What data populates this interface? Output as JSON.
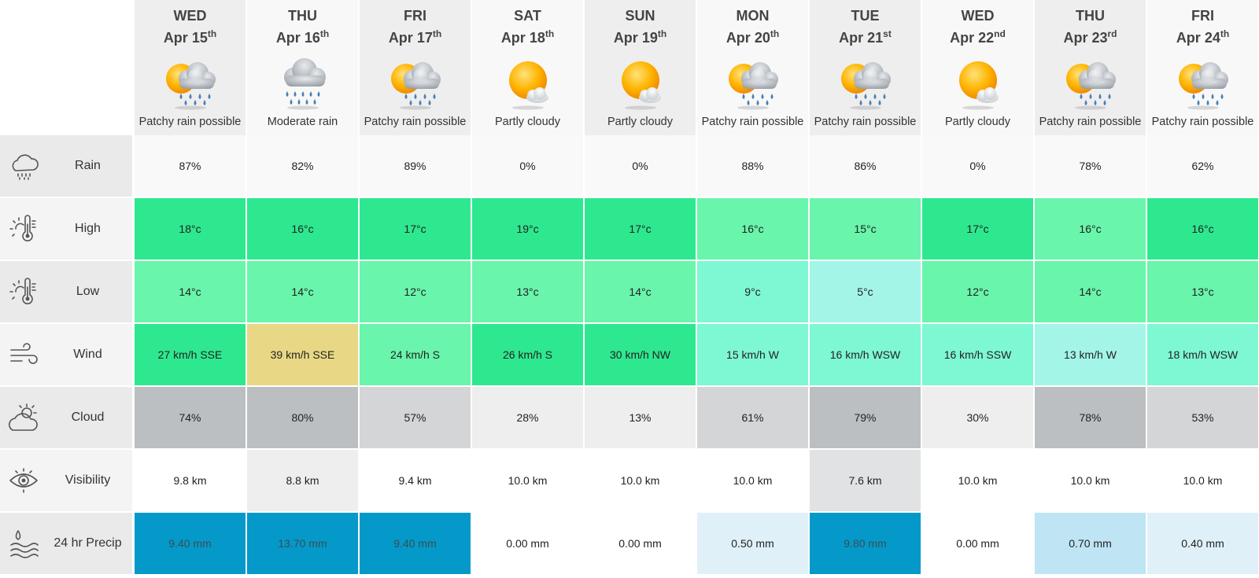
{
  "days": [
    {
      "dow": "WED",
      "date": "Apr 15",
      "suffix": "th",
      "icon": "patchy-rain-icon",
      "condition": "Patchy rain possible"
    },
    {
      "dow": "THU",
      "date": "Apr 16",
      "suffix": "th",
      "icon": "moderate-rain-icon",
      "condition": "Moderate rain"
    },
    {
      "dow": "FRI",
      "date": "Apr 17",
      "suffix": "th",
      "icon": "patchy-rain-icon",
      "condition": "Patchy rain possible"
    },
    {
      "dow": "SAT",
      "date": "Apr 18",
      "suffix": "th",
      "icon": "partly-cloudy-icon",
      "condition": "Partly cloudy"
    },
    {
      "dow": "SUN",
      "date": "Apr 19",
      "suffix": "th",
      "icon": "partly-cloudy-icon",
      "condition": "Partly cloudy"
    },
    {
      "dow": "MON",
      "date": "Apr 20",
      "suffix": "th",
      "icon": "patchy-rain-icon",
      "condition": "Patchy rain possible"
    },
    {
      "dow": "TUE",
      "date": "Apr 21",
      "suffix": "st",
      "icon": "patchy-rain-icon",
      "condition": "Patchy rain possible"
    },
    {
      "dow": "WED",
      "date": "Apr 22",
      "suffix": "nd",
      "icon": "partly-cloudy-icon",
      "condition": "Partly cloudy"
    },
    {
      "dow": "THU",
      "date": "Apr 23",
      "suffix": "rd",
      "icon": "patchy-rain-icon",
      "condition": "Patchy rain possible"
    },
    {
      "dow": "FRI",
      "date": "Apr 24",
      "suffix": "th",
      "icon": "patchy-rain-icon",
      "condition": "Patchy rain possible"
    }
  ],
  "rows": [
    {
      "key": "rain",
      "label": "Rain",
      "icon": "rain-cloud-icon",
      "values": [
        "87%",
        "82%",
        "89%",
        "0%",
        "0%",
        "88%",
        "86%",
        "0%",
        "78%",
        "62%"
      ],
      "colors": [
        "#f9f9f9",
        "#f9f9f9",
        "#f9f9f9",
        "#f9f9f9",
        "#f9f9f9",
        "#f9f9f9",
        "#f9f9f9",
        "#f9f9f9",
        "#f9f9f9",
        "#f9f9f9"
      ],
      "text_colors": [
        "#222",
        "#222",
        "#222",
        "#222",
        "#222",
        "#222",
        "#222",
        "#222",
        "#222",
        "#222"
      ]
    },
    {
      "key": "high",
      "label": "High",
      "icon": "thermometer-sun-icon",
      "values": [
        "18°c",
        "16°c",
        "17°c",
        "19°c",
        "17°c",
        "16°c",
        "15°c",
        "17°c",
        "16°c",
        "16°c"
      ],
      "colors": [
        "#2ee88f",
        "#2ee88f",
        "#2ee88f",
        "#2ee88f",
        "#2ee88f",
        "#69f5ab",
        "#69f5ab",
        "#2ee88f",
        "#69f5ab",
        "#2ee88f"
      ],
      "text_colors": [
        "#222",
        "#222",
        "#222",
        "#222",
        "#222",
        "#222",
        "#222",
        "#222",
        "#222",
        "#222"
      ]
    },
    {
      "key": "low",
      "label": "Low",
      "icon": "thermometer-sun-icon",
      "values": [
        "14°c",
        "14°c",
        "12°c",
        "13°c",
        "14°c",
        "9°c",
        "5°c",
        "12°c",
        "14°c",
        "13°c"
      ],
      "colors": [
        "#69f5ab",
        "#69f5ab",
        "#69f5ab",
        "#69f5ab",
        "#69f5ab",
        "#7ef7d3",
        "#a3f5e8",
        "#69f5ab",
        "#69f5ab",
        "#69f5ab"
      ],
      "text_colors": [
        "#222",
        "#222",
        "#222",
        "#222",
        "#222",
        "#222",
        "#222",
        "#222",
        "#222",
        "#222"
      ]
    },
    {
      "key": "wind",
      "label": "Wind",
      "icon": "wind-icon",
      "values": [
        "27 km/h SSE",
        "39 km/h SSE",
        "24 km/h S",
        "26 km/h S",
        "30 km/h NW",
        "15 km/h W",
        "16 km/h WSW",
        "16 km/h SSW",
        "13 km/h W",
        "18 km/h WSW"
      ],
      "colors": [
        "#2ee88f",
        "#e8d885",
        "#69f5ab",
        "#2ee88f",
        "#2ee88f",
        "#7ef7d3",
        "#7ef7d3",
        "#7ef7d3",
        "#a3f5e8",
        "#7ef7d3"
      ],
      "text_colors": [
        "#222",
        "#222",
        "#222",
        "#222",
        "#222",
        "#222",
        "#222",
        "#222",
        "#222",
        "#222"
      ]
    },
    {
      "key": "cloud",
      "label": "Cloud",
      "icon": "sun-cloud-icon",
      "values": [
        "74%",
        "80%",
        "57%",
        "28%",
        "13%",
        "61%",
        "79%",
        "30%",
        "78%",
        "53%"
      ],
      "colors": [
        "#bcbfc1",
        "#bcbfc1",
        "#d3d5d6",
        "#eeeeee",
        "#eeeeee",
        "#d3d5d6",
        "#bcbfc1",
        "#eeeeee",
        "#bcbfc1",
        "#d3d5d6"
      ],
      "text_colors": [
        "#222",
        "#222",
        "#222",
        "#222",
        "#222",
        "#222",
        "#222",
        "#222",
        "#222",
        "#222"
      ]
    },
    {
      "key": "visibility",
      "label": "Visibility",
      "icon": "eye-icon",
      "values": [
        "9.8 km",
        "8.8 km",
        "9.4 km",
        "10.0 km",
        "10.0 km",
        "10.0 km",
        "7.6 km",
        "10.0 km",
        "10.0 km",
        "10.0 km"
      ],
      "colors": [
        "#ffffff",
        "#eeeeee",
        "#ffffff",
        "#ffffff",
        "#ffffff",
        "#ffffff",
        "#e1e2e3",
        "#ffffff",
        "#ffffff",
        "#ffffff"
      ],
      "text_colors": [
        "#222",
        "#222",
        "#222",
        "#222",
        "#222",
        "#222",
        "#222",
        "#222",
        "#222",
        "#222"
      ]
    },
    {
      "key": "precip",
      "label": "24 hr Precip",
      "icon": "water-drop-waves-icon",
      "values": [
        "9.40 mm",
        "13.70 mm",
        "9.40 mm",
        "0.00 mm",
        "0.00 mm",
        "0.50 mm",
        "9.80 mm",
        "0.00 mm",
        "0.70 mm",
        "0.40 mm"
      ],
      "colors": [
        "#0499c9",
        "#0499c9",
        "#0499c9",
        "#ffffff",
        "#ffffff",
        "#dff0f8",
        "#0499c9",
        "#ffffff",
        "#bfe4f3",
        "#dff0f8"
      ],
      "text_colors": [
        "#3d4d55",
        "#3d4d55",
        "#3d4d55",
        "#222",
        "#222",
        "#222",
        "#3d4d55",
        "#222",
        "#222",
        "#222"
      ]
    }
  ]
}
